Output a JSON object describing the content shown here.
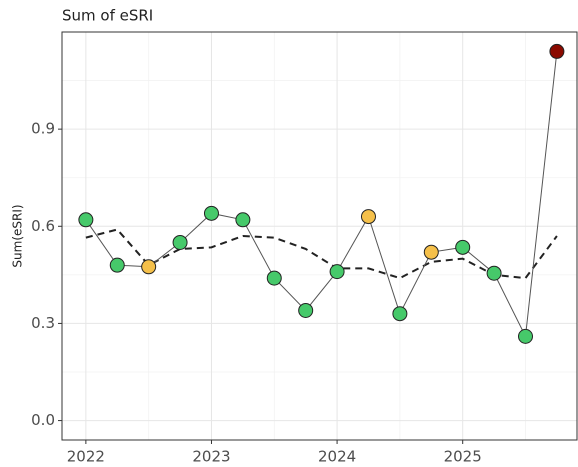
{
  "chart_data": {
    "type": "line",
    "title": "Sum of eSRI",
    "y_label": "Sum(eSRI)",
    "x": [
      2022,
      2022.25,
      2022.5,
      2022.75,
      2023,
      2023.25,
      2023.5,
      2023.75,
      2024,
      2024.25,
      2024.5,
      2024.75,
      2025,
      2025.25,
      2025.5,
      2025.75
    ],
    "series": [
      {
        "color": "#555555",
        "style": "solid",
        "markers": true,
        "point_colors": [
          "#46c96a",
          "#46c96a",
          "#f5c04a",
          "#46c96a",
          "#46c96a",
          "#46c96a",
          "#46c96a",
          "#46c96a",
          "#46c96a",
          "#f5c04a",
          "#46c96a",
          "#f5c04a",
          "#46c96a",
          "#46c96a",
          "#46c96a",
          "#8b0a00"
        ],
        "values": [
          0.62,
          0.48,
          0.475,
          0.55,
          0.64,
          0.62,
          0.44,
          0.34,
          0.46,
          0.63,
          0.33,
          0.52,
          0.535,
          0.455,
          0.26,
          1.14
        ]
      },
      {
        "color": "#222222",
        "style": "dashed",
        "markers": false,
        "values": [
          0.565,
          0.59,
          0.48,
          0.53,
          0.535,
          0.57,
          0.565,
          0.53,
          0.47,
          0.47,
          0.44,
          0.49,
          0.5,
          0.45,
          0.44,
          0.57
        ]
      }
    ],
    "xlim": [
      2021.81,
      2025.91
    ],
    "ylim": [
      -0.06,
      1.2
    ],
    "xticks": [
      2022,
      2023,
      2024,
      2025
    ],
    "yticks": [
      {
        "value": 0,
        "label": "0.0"
      },
      0.3,
      0.6,
      0.9
    ],
    "minor_xticks": [
      2022.5,
      2023.5,
      2024.5,
      2025.5
    ],
    "minor_yticks": [
      0.15,
      0.45,
      0.75,
      1.05
    ],
    "grid": true
  }
}
